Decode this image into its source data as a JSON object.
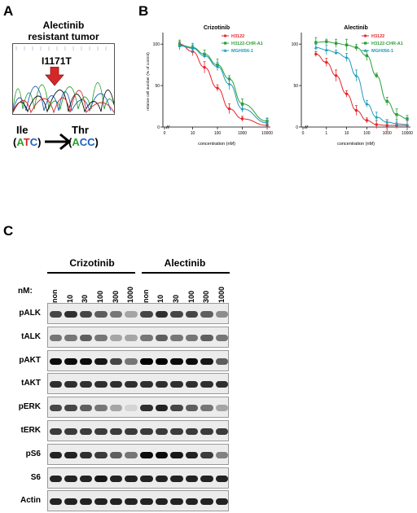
{
  "panel_a": {
    "letter": "A",
    "title_line1": "Alectinib",
    "title_line2": "resistant tumor",
    "mutation": "I1171T",
    "from_aa": "Ile",
    "to_aa": "Thr",
    "from_codon": [
      "A",
      "T",
      "C"
    ],
    "to_codon": [
      "A",
      "C",
      "C"
    ],
    "paren_open": "(",
    "paren_close": ")",
    "colors": {
      "A": "#2ca02c",
      "T": "#d62728",
      "C": "#1f5fbf",
      "arrow": "#d62728"
    }
  },
  "panel_b": {
    "letter": "B"
  },
  "chart_data": [
    {
      "type": "line",
      "title": "Crizotinib",
      "xlabel": "concentration (nM)",
      "ylabel": "relative cell number (% of control)",
      "x_scale": "log",
      "x_ticks": [
        "0",
        "10",
        "100",
        "1000",
        "10000"
      ],
      "y_ticks": [
        "0",
        "50",
        "100"
      ],
      "ylim": [
        0,
        110
      ],
      "x": [
        3,
        10,
        30,
        100,
        300,
        1000,
        10000
      ],
      "series": [
        {
          "name": "H3122",
          "color": "#e8262a",
          "values": [
            100,
            91,
            72,
            47,
            22,
            10,
            2
          ]
        },
        {
          "name": "H3122-CHR-A1",
          "color": "#2e9e3a",
          "values": [
            99,
            96,
            88,
            75,
            58,
            28,
            7
          ]
        },
        {
          "name": "MGH056-1",
          "color": "#1f9bb8",
          "values": [
            98,
            95,
            86,
            73,
            52,
            22,
            5
          ]
        }
      ],
      "legend": "top-right"
    },
    {
      "type": "line",
      "title": "Alectinib",
      "xlabel": "concentration (nM)",
      "ylabel": "",
      "x_scale": "log",
      "x_ticks": [
        "0",
        "1",
        "10",
        "100",
        "1000",
        "10000"
      ],
      "y_ticks": [
        "0",
        "50",
        "100"
      ],
      "ylim": [
        0,
        110
      ],
      "x": [
        0.3,
        1,
        3,
        10,
        30,
        100,
        300,
        1000,
        3000,
        10000
      ],
      "series": [
        {
          "name": "H3122",
          "color": "#e8262a",
          "values": [
            88,
            78,
            62,
            40,
            20,
            8,
            3,
            2,
            2,
            2
          ]
        },
        {
          "name": "H3122-CHR-A1",
          "color": "#2e9e3a",
          "values": [
            102,
            103,
            101,
            99,
            96,
            86,
            62,
            31,
            15,
            10
          ]
        },
        {
          "name": "MGH056-1",
          "color": "#1f9bb8",
          "values": [
            96,
            93,
            90,
            84,
            62,
            28,
            12,
            6,
            4,
            3
          ]
        }
      ],
      "legend": "top-right"
    }
  ],
  "panel_c": {
    "letter": "C",
    "groups": [
      "Crizotinib",
      "Alectinib"
    ],
    "nm_label": "nM:",
    "lanes": [
      "non",
      "10",
      "30",
      "100",
      "300",
      "1000",
      "non",
      "10",
      "30",
      "100",
      "300",
      "1000"
    ],
    "rows": [
      {
        "label": "pALK",
        "intensity": [
          0.7,
          0.8,
          0.7,
          0.6,
          0.5,
          0.3,
          0.7,
          0.8,
          0.7,
          0.7,
          0.6,
          0.4
        ]
      },
      {
        "label": "tALK",
        "intensity": [
          0.5,
          0.5,
          0.6,
          0.5,
          0.3,
          0.3,
          0.5,
          0.6,
          0.5,
          0.5,
          0.6,
          0.5
        ]
      },
      {
        "label": "pAKT",
        "intensity": [
          0.95,
          0.95,
          0.95,
          0.9,
          0.7,
          0.5,
          1,
          1,
          0.95,
          0.95,
          0.9,
          0.6
        ]
      },
      {
        "label": "tAKT",
        "intensity": [
          0.8,
          0.8,
          0.8,
          0.8,
          0.8,
          0.8,
          0.8,
          0.8,
          0.8,
          0.8,
          0.8,
          0.8
        ]
      },
      {
        "label": "pERK",
        "intensity": [
          0.7,
          0.7,
          0.6,
          0.5,
          0.3,
          0.1,
          0.8,
          0.85,
          0.7,
          0.6,
          0.5,
          0.3
        ]
      },
      {
        "label": "tERK",
        "intensity": [
          0.75,
          0.75,
          0.75,
          0.75,
          0.75,
          0.75,
          0.75,
          0.75,
          0.75,
          0.75,
          0.75,
          0.75
        ]
      },
      {
        "label": "pS6",
        "intensity": [
          0.85,
          0.85,
          0.8,
          0.75,
          0.6,
          0.5,
          0.95,
          0.95,
          0.9,
          0.85,
          0.75,
          0.45
        ]
      },
      {
        "label": "S6",
        "intensity": [
          0.85,
          0.85,
          0.85,
          0.9,
          0.85,
          0.85,
          0.85,
          0.85,
          0.85,
          0.85,
          0.85,
          0.85
        ]
      },
      {
        "label": "Actin",
        "intensity": [
          0.85,
          0.85,
          0.85,
          0.85,
          0.85,
          0.85,
          0.85,
          0.85,
          0.85,
          0.85,
          0.85,
          0.85
        ]
      }
    ]
  }
}
